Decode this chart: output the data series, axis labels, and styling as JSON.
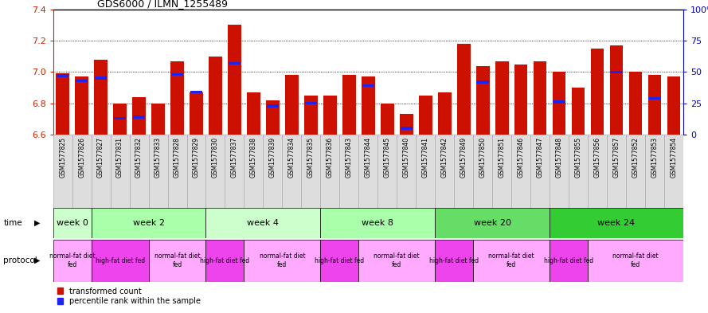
{
  "title": "GDS6000 / ILMN_1255489",
  "samples": [
    "GSM1577825",
    "GSM1577826",
    "GSM1577827",
    "GSM1577831",
    "GSM1577832",
    "GSM1577833",
    "GSM1577828",
    "GSM1577829",
    "GSM1577830",
    "GSM1577837",
    "GSM1577838",
    "GSM1577839",
    "GSM1577834",
    "GSM1577835",
    "GSM1577836",
    "GSM1577843",
    "GSM1577844",
    "GSM1577845",
    "GSM1577840",
    "GSM1577841",
    "GSM1577842",
    "GSM1577849",
    "GSM1577850",
    "GSM1577851",
    "GSM1577846",
    "GSM1577847",
    "GSM1577848",
    "GSM1577855",
    "GSM1577856",
    "GSM1577857",
    "GSM1577852",
    "GSM1577853",
    "GSM1577854"
  ],
  "red_values": [
    6.99,
    6.97,
    7.08,
    6.8,
    6.84,
    6.8,
    7.07,
    6.87,
    7.1,
    7.3,
    6.87,
    6.82,
    6.98,
    6.85,
    6.85,
    6.98,
    6.97,
    6.8,
    6.73,
    6.85,
    6.87,
    7.18,
    7.04,
    7.07,
    7.05,
    7.07,
    7.0,
    6.9,
    7.15,
    7.17,
    7.0,
    6.98,
    6.97
  ],
  "blue_percentiles": [
    47,
    43,
    45,
    13,
    14,
    null,
    48,
    34,
    null,
    57,
    null,
    23,
    null,
    25,
    null,
    null,
    39,
    null,
    5,
    null,
    null,
    null,
    42,
    null,
    null,
    null,
    26,
    null,
    null,
    50,
    null,
    29,
    null
  ],
  "ylim_left": [
    6.6,
    7.4
  ],
  "yticks_left": [
    6.6,
    6.8,
    7.0,
    7.2,
    7.4
  ],
  "ylim_right": [
    0,
    100
  ],
  "yticks_right": [
    0,
    25,
    50,
    75,
    100
  ],
  "ybase": 6.6,
  "time_groups": [
    {
      "label": "week 0",
      "start": 0,
      "end": 2,
      "color": "#ccffcc"
    },
    {
      "label": "week 2",
      "start": 2,
      "end": 8,
      "color": "#aaffaa"
    },
    {
      "label": "week 4",
      "start": 8,
      "end": 14,
      "color": "#ccffcc"
    },
    {
      "label": "week 8",
      "start": 14,
      "end": 20,
      "color": "#aaffaa"
    },
    {
      "label": "week 20",
      "start": 20,
      "end": 26,
      "color": "#66dd66"
    },
    {
      "label": "week 24",
      "start": 26,
      "end": 33,
      "color": "#33cc33"
    }
  ],
  "protocol_groups": [
    {
      "label": "normal-fat diet\nfed",
      "start": 0,
      "end": 2,
      "color": "#ffaaff"
    },
    {
      "label": "high-fat diet fed",
      "start": 2,
      "end": 5,
      "color": "#ee44ee"
    },
    {
      "label": "normal-fat diet\nfed",
      "start": 5,
      "end": 8,
      "color": "#ffaaff"
    },
    {
      "label": "high-fat diet fed",
      "start": 8,
      "end": 10,
      "color": "#ee44ee"
    },
    {
      "label": "normal-fat diet\nfed",
      "start": 10,
      "end": 14,
      "color": "#ffaaff"
    },
    {
      "label": "high-fat diet fed",
      "start": 14,
      "end": 16,
      "color": "#ee44ee"
    },
    {
      "label": "normal-fat diet\nfed",
      "start": 16,
      "end": 20,
      "color": "#ffaaff"
    },
    {
      "label": "high-fat diet fed",
      "start": 20,
      "end": 22,
      "color": "#ee44ee"
    },
    {
      "label": "normal-fat diet\nfed",
      "start": 22,
      "end": 26,
      "color": "#ffaaff"
    },
    {
      "label": "high-fat diet fed",
      "start": 26,
      "end": 28,
      "color": "#ee44ee"
    },
    {
      "label": "normal-fat diet\nfed",
      "start": 28,
      "end": 33,
      "color": "#ffaaff"
    }
  ],
  "bar_color": "#cc1100",
  "dot_color": "#2222ee",
  "background_color": "#ffffff",
  "left_tick_color": "#cc2200",
  "right_tick_color": "#0000cc",
  "sample_bg_color": "#dddddd",
  "sample_border_color": "#aaaaaa"
}
